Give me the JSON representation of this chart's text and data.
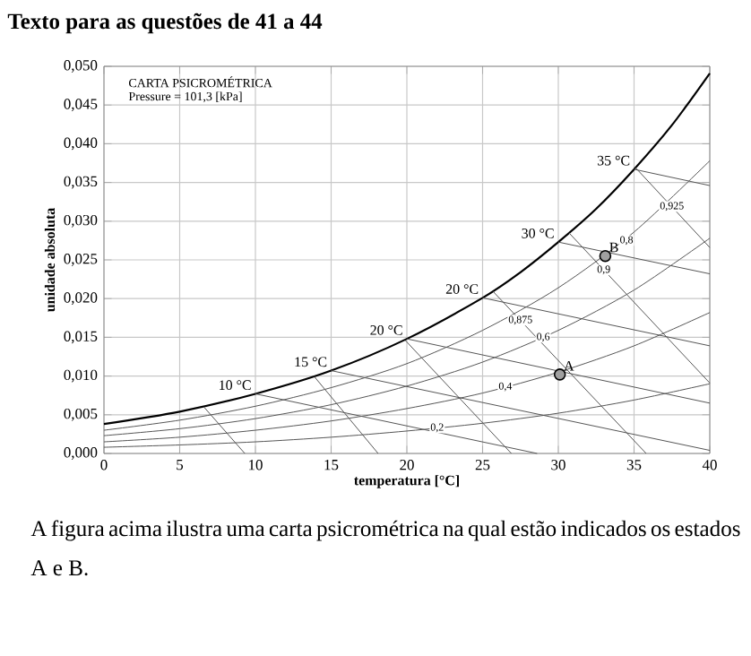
{
  "chart_data": {
    "type": "line",
    "title": "Texto para as questões de 41 a 44",
    "xlabel": "temperatura [°C]",
    "ylabel": "unidade absoluta",
    "xlim": [
      0,
      40
    ],
    "ylim": [
      0,
      0.05
    ],
    "xticks": [
      0,
      5,
      10,
      15,
      20,
      25,
      30,
      35,
      40
    ],
    "yticks": [
      {
        "value": 0,
        "label": "0,000"
      },
      {
        "value": 0.005,
        "label": "0,005"
      },
      {
        "value": 0.01,
        "label": "0,010"
      },
      {
        "value": 0.015,
        "label": "0,015"
      },
      {
        "value": 0.02,
        "label": "0,020"
      },
      {
        "value": 0.025,
        "label": "0,025"
      },
      {
        "value": 0.03,
        "label": "0,030"
      },
      {
        "value": 0.035,
        "label": "0,035"
      },
      {
        "value": 0.04,
        "label": "0,040"
      },
      {
        "value": 0.045,
        "label": "0,045"
      },
      {
        "value": 0.05,
        "label": "0,050"
      }
    ],
    "grid": true,
    "marker": "none",
    "series": [
      {
        "type": "line",
        "color": "#000000",
        "x": [
          0,
          5,
          10,
          15,
          20,
          25,
          27.5,
          30,
          32.5,
          35,
          37.5,
          40
        ],
        "values": [
          0.0038,
          0.0054,
          0.0077,
          0.0107,
          0.0148,
          0.0201,
          0.0234,
          0.0273,
          0.0316,
          0.0367,
          0.0424,
          0.0491
        ]
      },
      {
        "type": "line",
        "color": "#555555",
        "x": [
          0,
          5,
          10,
          15,
          20,
          25,
          30,
          35,
          40
        ],
        "values": [
          0.003,
          0.0043,
          0.0061,
          0.0085,
          0.0116,
          0.0159,
          0.0214,
          0.0286,
          0.0378
        ]
      },
      {
        "type": "line",
        "color": "#555555",
        "x": [
          0,
          5,
          10,
          15,
          20,
          25,
          30,
          35,
          40
        ],
        "values": [
          0.0023,
          0.0032,
          0.0045,
          0.0063,
          0.0087,
          0.0118,
          0.0159,
          0.0211,
          0.0278
        ]
      },
      {
        "type": "line",
        "color": "#555555",
        "x": [
          0,
          5,
          10,
          15,
          20,
          25,
          30,
          35,
          40
        ],
        "values": [
          0.0015,
          0.0021,
          0.003,
          0.0042,
          0.0058,
          0.0078,
          0.0105,
          0.0139,
          0.0182
        ]
      },
      {
        "type": "line",
        "color": "#555555",
        "x": [
          0,
          5,
          10,
          15,
          20,
          25,
          30,
          35,
          40
        ],
        "values": [
          0.0008,
          0.0011,
          0.0015,
          0.0021,
          0.0029,
          0.0039,
          0.0052,
          0.0069,
          0.009
        ]
      },
      {
        "type": "line",
        "color": "#555555",
        "x": [
          10,
          28.6
        ],
        "values": [
          0.0077,
          0
        ]
      },
      {
        "type": "line",
        "color": "#555555",
        "x": [
          15,
          40
        ],
        "values": [
          0.0107,
          0.0004
        ]
      },
      {
        "type": "line",
        "color": "#555555",
        "x": [
          20,
          40
        ],
        "values": [
          0.0148,
          0.0065
        ]
      },
      {
        "type": "line",
        "color": "#555555",
        "x": [
          25,
          40
        ],
        "values": [
          0.0201,
          0.0139
        ]
      },
      {
        "type": "line",
        "color": "#555555",
        "x": [
          30,
          40
        ],
        "values": [
          0.0273,
          0.0232
        ]
      },
      {
        "type": "line",
        "color": "#555555",
        "x": [
          35,
          40
        ],
        "values": [
          0.0367,
          0.0346
        ]
      },
      {
        "type": "line",
        "color": "#555555",
        "x": [
          6.6,
          9.3
        ],
        "values": [
          0.006,
          0
        ]
      },
      {
        "type": "line",
        "color": "#555555",
        "x": [
          13.9,
          18.1
        ],
        "values": [
          0.0099,
          0
        ]
      },
      {
        "type": "line",
        "color": "#555555",
        "x": [
          19.9,
          26.9
        ],
        "values": [
          0.0146,
          0
        ]
      },
      {
        "type": "line",
        "color": "#555555",
        "x": [
          25.7,
          35.8
        ],
        "values": [
          0.0209,
          0
        ]
      },
      {
        "type": "line",
        "color": "#555555",
        "x": [
          30.7,
          40
        ],
        "values": [
          0.0285,
          0.0091
        ]
      },
      {
        "type": "line",
        "color": "#555555",
        "x": [
          35.1,
          40
        ],
        "values": [
          0.0369,
          0.0266
        ]
      },
      {
        "type": "scatter",
        "color": "#a0a0a0",
        "marker": "circle",
        "x": [
          30.1,
          33.1
        ],
        "values": [
          0.0102,
          0.0255
        ]
      }
    ],
    "annotations": [
      "CARTA PSICROMÉTRICA",
      "Pressure = 101,3 [kPa]",
      "A figura acima ilustra uma carta psicrométrica na qual estão indicados os estados A e B.",
      {
        "text": "10 °C",
        "x": 10,
        "y": 0.0077
      },
      {
        "text": "15 °C",
        "x": 15,
        "y": 0.0107
      },
      {
        "text": "20 °C",
        "x": 20,
        "y": 0.0148
      },
      {
        "text": "20 °C",
        "x": 25,
        "y": 0.0201
      },
      {
        "text": "30 °C",
        "x": 30,
        "y": 0.0273
      },
      {
        "text": "35 °C",
        "x": 35,
        "y": 0.0367
      },
      {
        "text": "A",
        "x": 30.1,
        "y": 0.0102
      },
      {
        "text": "B",
        "x": 33.1,
        "y": 0.0255
      },
      {
        "text": "0,2",
        "x": 22,
        "y": 0.0033
      },
      {
        "text": "0,4",
        "x": 26.5,
        "y": 0.0086
      },
      {
        "text": "0,6",
        "x": 29,
        "y": 0.015
      },
      {
        "text": "0,8",
        "x": 34.5,
        "y": 0.0275
      },
      {
        "text": "0,875",
        "x": 27.5,
        "y": 0.0172
      },
      {
        "text": "0,9",
        "x": 33,
        "y": 0.0237
      },
      {
        "text": "0,925",
        "x": 37.5,
        "y": 0.0319
      }
    ]
  }
}
